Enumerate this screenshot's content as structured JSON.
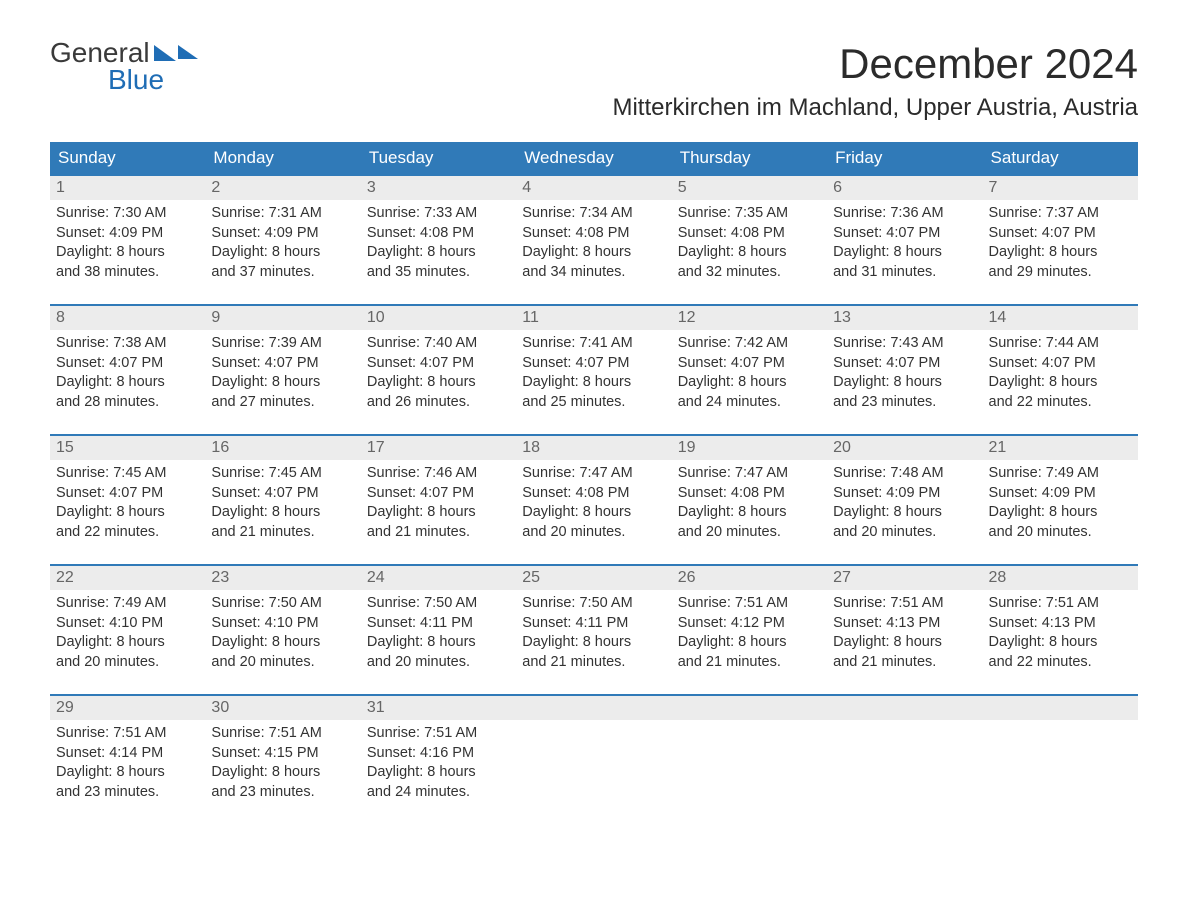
{
  "logo": {
    "word1": "General",
    "word2": "Blue"
  },
  "title": "December 2024",
  "location": "Mitterkirchen im Machland, Upper Austria, Austria",
  "colors": {
    "header_bg": "#307ab8",
    "header_text": "#ffffff",
    "daynum_bg": "#ececec",
    "daynum_text": "#666666",
    "border": "#307ab8",
    "body_text": "#333333",
    "logo_accent": "#1f6db5"
  },
  "day_headers": [
    "Sunday",
    "Monday",
    "Tuesday",
    "Wednesday",
    "Thursday",
    "Friday",
    "Saturday"
  ],
  "weeks": [
    [
      {
        "n": "1",
        "sunrise": "7:30 AM",
        "sunset": "4:09 PM",
        "dl1": "8 hours",
        "dl2": "and 38 minutes."
      },
      {
        "n": "2",
        "sunrise": "7:31 AM",
        "sunset": "4:09 PM",
        "dl1": "8 hours",
        "dl2": "and 37 minutes."
      },
      {
        "n": "3",
        "sunrise": "7:33 AM",
        "sunset": "4:08 PM",
        "dl1": "8 hours",
        "dl2": "and 35 minutes."
      },
      {
        "n": "4",
        "sunrise": "7:34 AM",
        "sunset": "4:08 PM",
        "dl1": "8 hours",
        "dl2": "and 34 minutes."
      },
      {
        "n": "5",
        "sunrise": "7:35 AM",
        "sunset": "4:08 PM",
        "dl1": "8 hours",
        "dl2": "and 32 minutes."
      },
      {
        "n": "6",
        "sunrise": "7:36 AM",
        "sunset": "4:07 PM",
        "dl1": "8 hours",
        "dl2": "and 31 minutes."
      },
      {
        "n": "7",
        "sunrise": "7:37 AM",
        "sunset": "4:07 PM",
        "dl1": "8 hours",
        "dl2": "and 29 minutes."
      }
    ],
    [
      {
        "n": "8",
        "sunrise": "7:38 AM",
        "sunset": "4:07 PM",
        "dl1": "8 hours",
        "dl2": "and 28 minutes."
      },
      {
        "n": "9",
        "sunrise": "7:39 AM",
        "sunset": "4:07 PM",
        "dl1": "8 hours",
        "dl2": "and 27 minutes."
      },
      {
        "n": "10",
        "sunrise": "7:40 AM",
        "sunset": "4:07 PM",
        "dl1": "8 hours",
        "dl2": "and 26 minutes."
      },
      {
        "n": "11",
        "sunrise": "7:41 AM",
        "sunset": "4:07 PM",
        "dl1": "8 hours",
        "dl2": "and 25 minutes."
      },
      {
        "n": "12",
        "sunrise": "7:42 AM",
        "sunset": "4:07 PM",
        "dl1": "8 hours",
        "dl2": "and 24 minutes."
      },
      {
        "n": "13",
        "sunrise": "7:43 AM",
        "sunset": "4:07 PM",
        "dl1": "8 hours",
        "dl2": "and 23 minutes."
      },
      {
        "n": "14",
        "sunrise": "7:44 AM",
        "sunset": "4:07 PM",
        "dl1": "8 hours",
        "dl2": "and 22 minutes."
      }
    ],
    [
      {
        "n": "15",
        "sunrise": "7:45 AM",
        "sunset": "4:07 PM",
        "dl1": "8 hours",
        "dl2": "and 22 minutes."
      },
      {
        "n": "16",
        "sunrise": "7:45 AM",
        "sunset": "4:07 PM",
        "dl1": "8 hours",
        "dl2": "and 21 minutes."
      },
      {
        "n": "17",
        "sunrise": "7:46 AM",
        "sunset": "4:07 PM",
        "dl1": "8 hours",
        "dl2": "and 21 minutes."
      },
      {
        "n": "18",
        "sunrise": "7:47 AM",
        "sunset": "4:08 PM",
        "dl1": "8 hours",
        "dl2": "and 20 minutes."
      },
      {
        "n": "19",
        "sunrise": "7:47 AM",
        "sunset": "4:08 PM",
        "dl1": "8 hours",
        "dl2": "and 20 minutes."
      },
      {
        "n": "20",
        "sunrise": "7:48 AM",
        "sunset": "4:09 PM",
        "dl1": "8 hours",
        "dl2": "and 20 minutes."
      },
      {
        "n": "21",
        "sunrise": "7:49 AM",
        "sunset": "4:09 PM",
        "dl1": "8 hours",
        "dl2": "and 20 minutes."
      }
    ],
    [
      {
        "n": "22",
        "sunrise": "7:49 AM",
        "sunset": "4:10 PM",
        "dl1": "8 hours",
        "dl2": "and 20 minutes."
      },
      {
        "n": "23",
        "sunrise": "7:50 AM",
        "sunset": "4:10 PM",
        "dl1": "8 hours",
        "dl2": "and 20 minutes."
      },
      {
        "n": "24",
        "sunrise": "7:50 AM",
        "sunset": "4:11 PM",
        "dl1": "8 hours",
        "dl2": "and 20 minutes."
      },
      {
        "n": "25",
        "sunrise": "7:50 AM",
        "sunset": "4:11 PM",
        "dl1": "8 hours",
        "dl2": "and 21 minutes."
      },
      {
        "n": "26",
        "sunrise": "7:51 AM",
        "sunset": "4:12 PM",
        "dl1": "8 hours",
        "dl2": "and 21 minutes."
      },
      {
        "n": "27",
        "sunrise": "7:51 AM",
        "sunset": "4:13 PM",
        "dl1": "8 hours",
        "dl2": "and 21 minutes."
      },
      {
        "n": "28",
        "sunrise": "7:51 AM",
        "sunset": "4:13 PM",
        "dl1": "8 hours",
        "dl2": "and 22 minutes."
      }
    ],
    [
      {
        "n": "29",
        "sunrise": "7:51 AM",
        "sunset": "4:14 PM",
        "dl1": "8 hours",
        "dl2": "and 23 minutes."
      },
      {
        "n": "30",
        "sunrise": "7:51 AM",
        "sunset": "4:15 PM",
        "dl1": "8 hours",
        "dl2": "and 23 minutes."
      },
      {
        "n": "31",
        "sunrise": "7:51 AM",
        "sunset": "4:16 PM",
        "dl1": "8 hours",
        "dl2": "and 24 minutes."
      },
      null,
      null,
      null,
      null
    ]
  ],
  "labels": {
    "sunrise": "Sunrise:",
    "sunset": "Sunset:",
    "daylight": "Daylight:"
  }
}
